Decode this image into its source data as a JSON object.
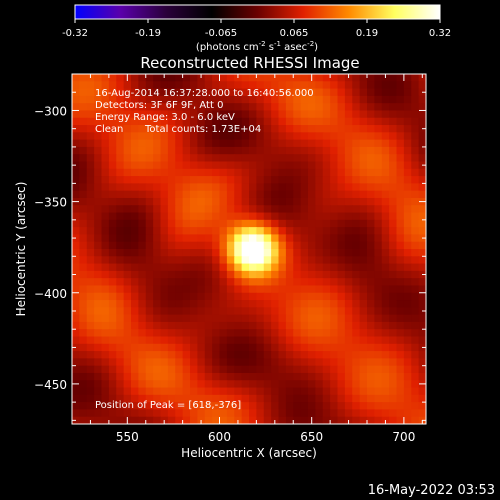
{
  "colorbar": {
    "tick_labels": [
      "-0.32",
      "-0.19",
      "-0.065",
      "0.065",
      "0.19",
      "0.32"
    ],
    "range": [
      -0.32,
      0.32
    ],
    "unit_label_parts": [
      "(photons cm",
      "-2",
      " s",
      "-1",
      " asec",
      "-2",
      ")"
    ],
    "colormap_stops": [
      "#0000ff",
      "#5a00aa",
      "#2a003a",
      "#000000",
      "#6a0000",
      "#e02000",
      "#ff8a00",
      "#ffff60",
      "#ffffff"
    ]
  },
  "chart_data": {
    "type": "heatmap",
    "title": "Reconstructed RHESSI Image",
    "xlabel": "Heliocentric X (arcsec)",
    "ylabel": "Heliocentric Y (arcsec)",
    "xlim": [
      520,
      712
    ],
    "ylim": [
      -472,
      -280
    ],
    "x_ticks": [
      550,
      600,
      650,
      700
    ],
    "x_tick_labels": [
      "550",
      "600",
      "650",
      "700"
    ],
    "y_ticks": [
      -300,
      -350,
      -400,
      -450
    ],
    "y_tick_labels": [
      "−300",
      "−350",
      "−400",
      "−450"
    ],
    "peak": [
      618,
      -376
    ],
    "peak_value": 0.32,
    "annotations": [
      "16-Aug-2014 16:37:28.000 to 16:40:56.000",
      "Detectors: 3F 6F 9F, Att 0",
      "Energy Range: 3.0 - 6.0 keV",
      "Clean",
      "Total counts: 1.73E+04"
    ],
    "peak_label": "Position of Peak = [618,-376]"
  },
  "footer": {
    "date": "16-May-2022 03:53"
  }
}
